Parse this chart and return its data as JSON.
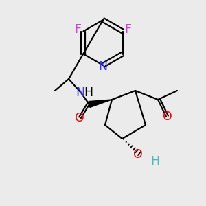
{
  "background_color": "#ebebeb",
  "bond_color": "#000000",
  "lw": 1.6,
  "atom_colors": {
    "O": "#ff0000",
    "H_OH": "#4db8b8",
    "N": "#3333ff",
    "F": "#cc44cc",
    "C": "#000000",
    "H": "#000000"
  },
  "fontsize": 11.5
}
